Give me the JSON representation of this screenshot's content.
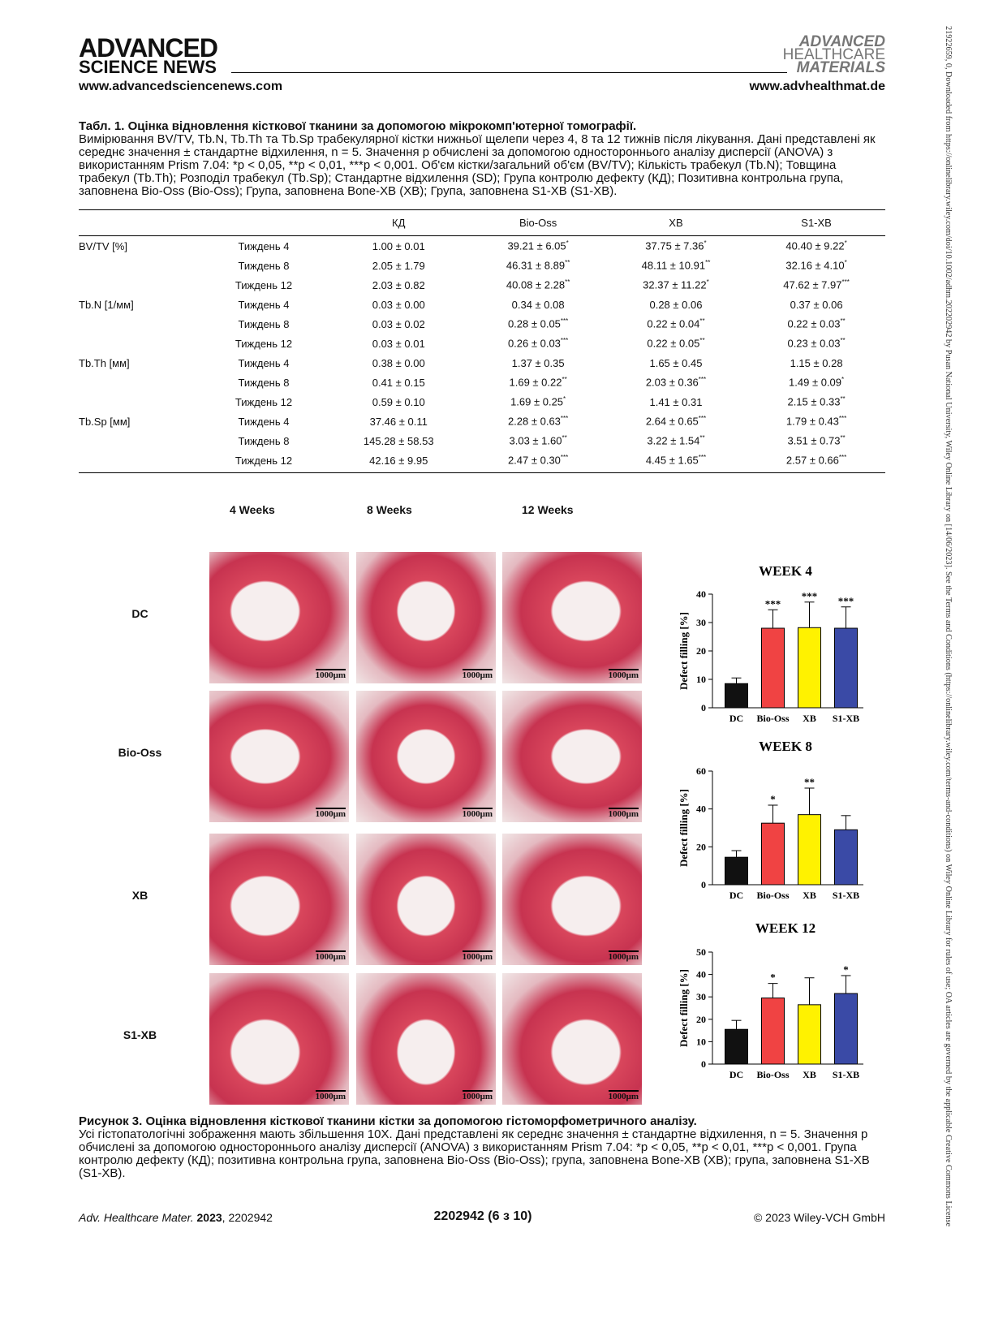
{
  "header": {
    "brand_top": "ADVANCED",
    "brand_bottom": "SCIENCE NEWS",
    "url_left": "www.advancedsciencenews.com",
    "journal_logo": [
      "ADVANCED",
      "HEALTHCARE",
      "MATERIALS"
    ],
    "url_right": "www.advhealthmat.de"
  },
  "side_note": "21922659, 0, Downloaded from https://onlinelibrary.wiley.com/doi/10.1002/adhm.202202942 by Pusan National University, Wiley Online Library on [14/06/2023]. See the Terms and Conditions (https://onlinelibrary.wiley.com/terms-and-conditions) on Wiley Online Library for rules of use; OA articles are governed by the applicable Creative Commons License",
  "table": {
    "caption_title": "Табл. 1. Оцінка відновлення кісткової тканини за допомогою мікрокомп'ютерної томографії.",
    "caption_text": "Вимірювання BV/TV, Tb.N, Tb.Th та Tb.Sp трабекулярної кістки нижньої щелепи через 4, 8 та 12 тижнів після лікування. Дані представлені як середнє значення ± стандартне відхилення, n = 5. Значення p обчислені за допомогою одностороннього аналізу дисперсії (ANOVA) з використанням Prism 7.04: *p < 0,05, **p < 0,01, ***p < 0,001.  Об'єм кістки/загальний об'єм (BV/TV); Кількість трабекул (Tb.N); Товщина трабекул (Tb.Th); Розподіл трабекул (Tb.Sp); Стандартне відхилення (SD); Група контролю дефекту (КД); Позитивна контрольна група, заповнена Bio-Oss (Bio-Oss); Група, заповнена Bone-XB (XB); Група, заповнена S1-XB (S1-XB).",
    "columns": [
      "КД",
      "Bio-Oss",
      "XB",
      "S1-XB"
    ],
    "rows": [
      {
        "measure": "BV/TV [%]",
        "week": "Тиждень 4",
        "cells": [
          {
            "text": "1.00 ± 0.01"
          },
          {
            "text": "39.21 ± 6.05",
            "sig": "*"
          },
          {
            "text": "37.75 ± 7.36",
            "sig": "*"
          },
          {
            "text": "40.40 ± 9.22",
            "sig": "*"
          }
        ]
      },
      {
        "week": "Тиждень 8",
        "cells": [
          {
            "text": "2.05 ± 1.79"
          },
          {
            "text": "46.31 ± 8.89",
            "sig": "**"
          },
          {
            "text": "48.11 ± 10.91",
            "sig": "**"
          },
          {
            "text": "32.16 ± 4.10",
            "sig": "*"
          }
        ]
      },
      {
        "week": "Тиждень 12",
        "cells": [
          {
            "text": "2.03 ± 0.82"
          },
          {
            "text": "40.08 ± 2.28",
            "sig": "**"
          },
          {
            "text": "32.37 ± 11.22",
            "sig": "*"
          },
          {
            "text": "47.62 ± 7.97",
            "sig": "***"
          }
        ]
      },
      {
        "measure": "Tb.N [1/мм]",
        "week": "Тиждень 4",
        "cells": [
          {
            "text": "0.03 ± 0.00"
          },
          {
            "text": "0.34 ± 0.08"
          },
          {
            "text": "0.28 ± 0.06"
          },
          {
            "text": "0.37 ± 0.06"
          }
        ]
      },
      {
        "week": "Тиждень 8",
        "cells": [
          {
            "text": "0.03 ± 0.02"
          },
          {
            "text": "0.28 ± 0.05",
            "sig": "***"
          },
          {
            "text": "0.22 ± 0.04",
            "sig": "**"
          },
          {
            "text": "0.22 ± 0.03",
            "sig": "**"
          }
        ]
      },
      {
        "week": "Тиждень 12",
        "cells": [
          {
            "text": "0.03 ± 0.01"
          },
          {
            "text": "0.26 ± 0.03",
            "sig": "***"
          },
          {
            "text": "0.22 ± 0.05",
            "sig": "**"
          },
          {
            "text": "0.23 ± 0.03",
            "sig": "**"
          }
        ]
      },
      {
        "measure": "Tb.Th [мм]",
        "week": "Тиждень 4",
        "cells": [
          {
            "text": "0.38 ± 0.00"
          },
          {
            "text": "1.37 ± 0.35"
          },
          {
            "text": "1.65 ± 0.45"
          },
          {
            "text": "1.15 ± 0.28"
          }
        ]
      },
      {
        "week": "Тиждень 8",
        "cells": [
          {
            "text": "0.41 ± 0.15"
          },
          {
            "text": "1.69 ± 0.22",
            "sig": "**"
          },
          {
            "text": "2.03 ± 0.36",
            "sig": "***"
          },
          {
            "text": "1.49 ± 0.09",
            "sig": "*"
          }
        ]
      },
      {
        "week": "Тиждень 12",
        "cells": [
          {
            "text": "0.59 ± 0.10"
          },
          {
            "text": "1.69 ± 0.25",
            "sig": "*"
          },
          {
            "text": "1.41 ± 0.31"
          },
          {
            "text": "2.15 ± 0.33",
            "sig": "**"
          }
        ]
      },
      {
        "measure": "Tb.Sp [мм]",
        "week": "Тиждень 4",
        "cells": [
          {
            "text": "37.46 ± 0.11"
          },
          {
            "text": "2.28 ± 0.63",
            "sig": "***"
          },
          {
            "text": "2.64 ± 0.65",
            "sig": "***"
          },
          {
            "text": "1.79 ± 0.43",
            "sig": "***"
          }
        ]
      },
      {
        "week": "Тиждень 8",
        "cells": [
          {
            "text": "145.28 ± 58.53"
          },
          {
            "text": "3.03 ± 1.60",
            "sig": "**"
          },
          {
            "text": "3.22 ± 1.54",
            "sig": "**"
          },
          {
            "text": "3.51 ± 0.73",
            "sig": "**"
          }
        ]
      },
      {
        "week": "Тиждень 12",
        "cells": [
          {
            "text": "42.16 ± 9.95"
          },
          {
            "text": "2.47 ± 0.30",
            "sig": "***"
          },
          {
            "text": "4.45 ± 1.65",
            "sig": "***"
          },
          {
            "text": "2.57 ± 0.66",
            "sig": "***"
          }
        ]
      }
    ]
  },
  "figure": {
    "column_labels": [
      "4 Weeks",
      "8 Weeks",
      "12 Weeks"
    ],
    "row_labels": [
      "DC",
      "Bio-Oss",
      "XB",
      "S1-XB"
    ],
    "scale_bar": "1000μm",
    "caption_title": "Рисунок 3. Оцінка відновлення кісткової тканини кістки за допомогою гістоморфометричного аналізу.",
    "caption_text": "Усі гістопатологічні зображення мають збільшення 10Х. Дані представлені як середнє значення ± стандартне відхилення, n = 5. Значення p обчислені за допомогою одностороннього аналізу дисперсії (ANOVA) з використанням Prism 7.04: *p < 0,05, **p < 0,01, ***p < 0,001. Група контролю дефекту (КД); позитивна контрольна група, заповнена Bio-Oss (Bio-Oss); група, заповнена Bone-XB (XB); група, заповнена S1-XB (S1-XB)."
  },
  "chart_data": [
    {
      "type": "bar",
      "title": "WEEK 4",
      "y_label": "Defect filling [%]",
      "categories": [
        "DC",
        "Bio-Oss",
        "XB",
        "S1-XB"
      ],
      "values": [
        8.5,
        28,
        28.2,
        28
      ],
      "errors": [
        2,
        6.5,
        9,
        7.5
      ],
      "annotations": [
        null,
        "***",
        "***",
        "***"
      ],
      "colors": [
        "#111111",
        "#f04343",
        "#fff200",
        "#3a4aa6"
      ],
      "ylim": [
        0,
        40
      ],
      "yticks": [
        0,
        10,
        20,
        30,
        40
      ]
    },
    {
      "type": "bar",
      "title": "WEEK 8",
      "y_label": "Defect filling [%]",
      "categories": [
        "DC",
        "Bio-Oss",
        "XB",
        "S1-XB"
      ],
      "values": [
        14.5,
        32.5,
        37,
        29
      ],
      "errors": [
        3.5,
        9.5,
        14,
        7.5
      ],
      "annotations": [
        null,
        "*",
        "**",
        null
      ],
      "colors": [
        "#111111",
        "#f04343",
        "#fff200",
        "#3a4aa6"
      ],
      "ylim": [
        0,
        60
      ],
      "yticks": [
        0,
        20,
        40,
        60
      ]
    },
    {
      "type": "bar",
      "title": "WEEK 12",
      "y_label": "Defect filling [%]",
      "categories": [
        "DC",
        "Bio-Oss",
        "XB",
        "S1-XB"
      ],
      "values": [
        15.5,
        29.5,
        26.5,
        31.5
      ],
      "errors": [
        4,
        6.5,
        12,
        8
      ],
      "annotations": [
        null,
        "*",
        null,
        "*"
      ],
      "colors": [
        "#111111",
        "#f04343",
        "#fff200",
        "#3a4aa6"
      ],
      "ylim": [
        0,
        50
      ],
      "yticks": [
        0,
        10,
        20,
        30,
        40,
        50
      ]
    }
  ],
  "footer": {
    "journal": "Adv. Healthcare Mater.",
    "year": "2023",
    "article": "2202942",
    "page": "2202942 (6 з 10)",
    "copyright": "© 2023 Wiley-VCH GmbH"
  }
}
